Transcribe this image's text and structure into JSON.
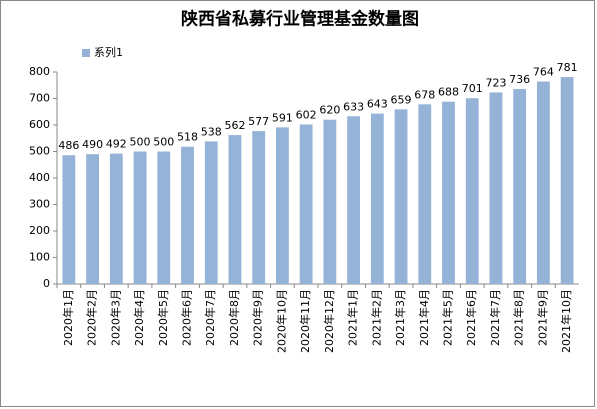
{
  "chart_data": {
    "type": "bar",
    "title": "陕西省私募行业管理基金数量图",
    "categories": [
      "2020年1月",
      "2020年2月",
      "2020年3月",
      "2020年4月",
      "2020年5月",
      "2020年6月",
      "2020年7月",
      "2020年8月",
      "2020年9月",
      "2020年10月",
      "2020年11月",
      "2020年12月",
      "2021年1月",
      "2021年2月",
      "2021年3月",
      "2021年4月",
      "2021年5月",
      "2021年6月",
      "2021年7月",
      "2021年8月",
      "2021年9月",
      "2021年10月"
    ],
    "series": [
      {
        "name": "系列1",
        "color": "#95b3d7",
        "values": [
          486,
          490,
          492,
          500,
          500,
          518,
          538,
          562,
          577,
          591,
          602,
          620,
          633,
          643,
          659,
          678,
          688,
          701,
          723,
          736,
          764,
          781
        ]
      }
    ],
    "ylim": [
      0,
      800
    ],
    "yticks": [
      0,
      100,
      200,
      300,
      400,
      500,
      600,
      700,
      800
    ],
    "grid": false,
    "legend": "top-left",
    "data_labels": true
  }
}
